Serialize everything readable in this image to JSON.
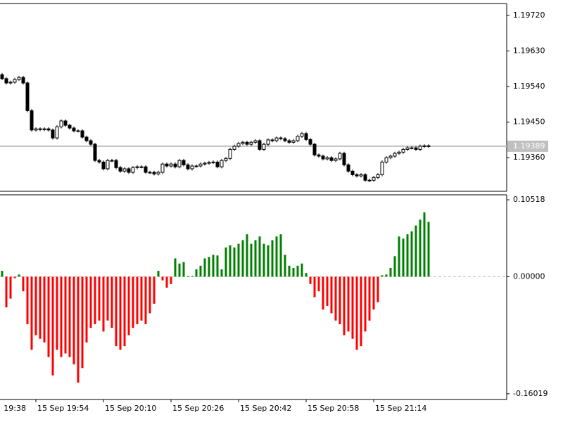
{
  "chart_data": [
    {
      "type": "candlestick",
      "open": [
        1.1957,
        1.1956,
        1.19549,
        1.19551,
        1.19558,
        1.19563,
        1.19549,
        1.19479,
        1.1943,
        1.19433,
        1.19431,
        1.19433,
        1.1943,
        1.1941,
        1.19438,
        1.19453,
        1.19442,
        1.19435,
        1.19428,
        1.19428,
        1.19412,
        1.19403,
        1.19394,
        1.19353,
        1.19349,
        1.19332,
        1.19353,
        1.19353,
        1.19335,
        1.19326,
        1.19332,
        1.19323,
        1.19335,
        1.19337,
        1.19337,
        1.19323,
        1.19323,
        1.19319,
        1.19323,
        1.19344,
        1.19339,
        1.19344,
        1.19337,
        1.19353,
        1.19342,
        1.19332,
        1.19339,
        1.19339,
        1.19344,
        1.19346,
        1.19348,
        1.19349,
        1.19337,
        1.19353,
        1.19358,
        1.19381,
        1.19389,
        1.19396,
        1.19399,
        1.19394,
        1.19399,
        1.19403,
        1.19381,
        1.19394,
        1.19405,
        1.19403,
        1.1941,
        1.19408,
        1.19403,
        1.19399,
        1.19403,
        1.19414,
        1.19421,
        1.19406,
        1.19394,
        1.19367,
        1.19364,
        1.19357,
        1.1936,
        1.19353,
        1.19357,
        1.19371,
        1.19342,
        1.19326,
        1.19317,
        1.19314,
        1.19317,
        1.19303,
        1.19303,
        1.1931,
        1.19317,
        1.19349,
        1.1936,
        1.19364,
        1.19371,
        1.19374,
        1.19381,
        1.19385,
        1.19385,
        1.19381,
        1.19389,
        1.1939
      ],
      "high": [
        1.19574,
        1.19564,
        1.19555,
        1.19562,
        1.19567,
        1.19567,
        1.19553,
        1.19483,
        1.19437,
        1.19437,
        1.19437,
        1.19437,
        1.19434,
        1.19442,
        1.19457,
        1.19457,
        1.19446,
        1.19439,
        1.19432,
        1.19432,
        1.19416,
        1.19407,
        1.19398,
        1.19357,
        1.19353,
        1.19357,
        1.19357,
        1.19357,
        1.19339,
        1.19336,
        1.19336,
        1.19339,
        1.19341,
        1.19341,
        1.19341,
        1.19327,
        1.19327,
        1.19327,
        1.19348,
        1.19348,
        1.19348,
        1.19348,
        1.19357,
        1.19357,
        1.19346,
        1.19343,
        1.19343,
        1.19348,
        1.1935,
        1.19352,
        1.19353,
        1.19353,
        1.19357,
        1.19362,
        1.19385,
        1.19393,
        1.194,
        1.19403,
        1.19403,
        1.19403,
        1.19407,
        1.19407,
        1.19398,
        1.19409,
        1.19409,
        1.19414,
        1.19414,
        1.19412,
        1.19407,
        1.19407,
        1.19418,
        1.19425,
        1.19425,
        1.1941,
        1.19398,
        1.19371,
        1.19368,
        1.19364,
        1.19364,
        1.19361,
        1.19375,
        1.19375,
        1.19346,
        1.1933,
        1.19321,
        1.19321,
        1.19321,
        1.19307,
        1.19314,
        1.19321,
        1.19353,
        1.19364,
        1.19368,
        1.19375,
        1.19378,
        1.19385,
        1.19389,
        1.19389,
        1.19389,
        1.19393,
        1.19394,
        1.19394
      ],
      "low": [
        1.19556,
        1.19545,
        1.19545,
        1.19547,
        1.19554,
        1.19545,
        1.19475,
        1.19426,
        1.19426,
        1.19427,
        1.19427,
        1.19426,
        1.19406,
        1.19406,
        1.19434,
        1.19438,
        1.19431,
        1.19424,
        1.19424,
        1.19408,
        1.19399,
        1.1939,
        1.19349,
        1.19345,
        1.19328,
        1.19328,
        1.19349,
        1.19331,
        1.19322,
        1.19322,
        1.19319,
        1.19319,
        1.19331,
        1.19333,
        1.19319,
        1.19319,
        1.19315,
        1.19315,
        1.19319,
        1.19335,
        1.19335,
        1.19333,
        1.19333,
        1.19338,
        1.19328,
        1.19328,
        1.19335,
        1.19335,
        1.1934,
        1.19342,
        1.19344,
        1.19333,
        1.19333,
        1.19349,
        1.19354,
        1.19377,
        1.19385,
        1.19392,
        1.1939,
        1.1939,
        1.19395,
        1.19377,
        1.19377,
        1.1939,
        1.19399,
        1.19399,
        1.19404,
        1.19399,
        1.19395,
        1.19395,
        1.19399,
        1.1941,
        1.19402,
        1.1939,
        1.19363,
        1.1936,
        1.19353,
        1.19353,
        1.19349,
        1.19349,
        1.19353,
        1.19338,
        1.19322,
        1.19313,
        1.1931,
        1.1931,
        1.19299,
        1.19299,
        1.19299,
        1.19306,
        1.19313,
        1.19345,
        1.19356,
        1.1936,
        1.19367,
        1.1937,
        1.19377,
        1.19381,
        1.19377,
        1.19377,
        1.19385,
        1.19385
      ],
      "close": [
        1.1956,
        1.19549,
        1.19551,
        1.19558,
        1.19563,
        1.19549,
        1.19479,
        1.1943,
        1.19433,
        1.19431,
        1.19433,
        1.1943,
        1.1941,
        1.19438,
        1.19453,
        1.19442,
        1.19435,
        1.19428,
        1.19428,
        1.19412,
        1.19403,
        1.19394,
        1.19353,
        1.19349,
        1.19332,
        1.19353,
        1.19353,
        1.19335,
        1.19326,
        1.19332,
        1.19323,
        1.19335,
        1.19337,
        1.19337,
        1.19323,
        1.19323,
        1.19319,
        1.19323,
        1.19344,
        1.19339,
        1.19344,
        1.19337,
        1.19353,
        1.19342,
        1.19332,
        1.19339,
        1.19339,
        1.19344,
        1.19346,
        1.19348,
        1.19349,
        1.19337,
        1.19353,
        1.19358,
        1.19381,
        1.19389,
        1.19396,
        1.19399,
        1.19394,
        1.19399,
        1.19403,
        1.19381,
        1.19394,
        1.19405,
        1.19403,
        1.1941,
        1.19408,
        1.19403,
        1.19399,
        1.19403,
        1.19414,
        1.19421,
        1.19406,
        1.19394,
        1.19367,
        1.19364,
        1.19357,
        1.1936,
        1.19353,
        1.19357,
        1.19371,
        1.19342,
        1.19326,
        1.19317,
        1.19314,
        1.19317,
        1.19303,
        1.19303,
        1.1931,
        1.19317,
        1.19349,
        1.1936,
        1.19364,
        1.19371,
        1.19374,
        1.19381,
        1.19385,
        1.19385,
        1.19381,
        1.19389,
        1.1939,
        1.19389
      ],
      "up_color": "#ffffff",
      "down_color": "#000000",
      "ylim": [
        1.19275,
        1.1975
      ],
      "yticks": [
        {
          "value": 1.1972,
          "label": "1.19720"
        },
        {
          "value": 1.1963,
          "label": "1.19630"
        },
        {
          "value": 1.1954,
          "label": "1.19540"
        },
        {
          "value": 1.1945,
          "label": "1.19450"
        },
        {
          "value": 1.1936,
          "label": "1.19360"
        }
      ],
      "last_price": 1.19389
    },
    {
      "type": "bar",
      "values": [
        0.008,
        -0.042,
        -0.03,
        -0.002,
        0.003,
        -0.02,
        -0.065,
        -0.1,
        -0.08,
        -0.085,
        -0.09,
        -0.11,
        -0.135,
        -0.1,
        -0.11,
        -0.105,
        -0.11,
        -0.12,
        -0.145,
        -0.125,
        -0.09,
        -0.07,
        -0.065,
        -0.06,
        -0.075,
        -0.06,
        -0.07,
        -0.095,
        -0.1,
        -0.095,
        -0.08,
        -0.07,
        -0.065,
        -0.06,
        -0.065,
        -0.05,
        -0.037,
        0.008,
        -0.005,
        -0.015,
        -0.01,
        0.025,
        0.018,
        0.02,
        0.001,
        0.001,
        0.01,
        0.015,
        0.025,
        0.027,
        0.03,
        0.029,
        0.01,
        0.04,
        0.043,
        0.04,
        0.045,
        0.05,
        0.058,
        0.045,
        0.05,
        0.055,
        0.045,
        0.043,
        0.05,
        0.055,
        0.058,
        0.03,
        0.015,
        0.012,
        0.015,
        0.018,
        0.005,
        -0.01,
        -0.028,
        -0.02,
        -0.045,
        -0.04,
        -0.05,
        -0.06,
        -0.065,
        -0.08,
        -0.075,
        -0.085,
        -0.1,
        -0.095,
        -0.075,
        -0.06,
        -0.045,
        -0.035,
        0.002,
        0.003,
        0.012,
        0.028,
        0.055,
        0.052,
        0.058,
        0.062,
        0.07,
        0.078,
        0.088,
        0.075
      ],
      "positive_color": "#008000",
      "negative_color": "#ff0000",
      "ylim": [
        -0.168,
        0.112
      ],
      "yticks": [
        0.10518,
        {
          "value": 0,
          "label": "0.00000"
        },
        -0.16019
      ],
      "x_labels": [
        "19:38",
        "15 Sep 19:54",
        "15 Sep 20:10",
        "15 Sep 20:26",
        "15 Sep 20:42",
        "15 Sep 20:58",
        "15 Sep 21:14"
      ]
    }
  ]
}
